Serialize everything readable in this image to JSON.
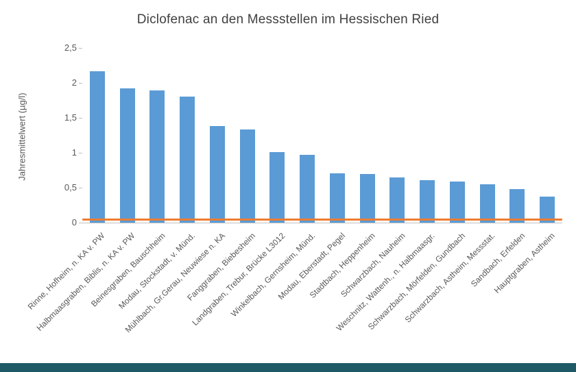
{
  "chart_data": {
    "type": "bar",
    "title": "Diclofenac an den Messstellen im Hessischen Ried",
    "ylabel": "Jahresmittelwert (µg/l)",
    "xlabel": "",
    "ylim": [
      0,
      2.5
    ],
    "grid": false,
    "legend": "none",
    "ytick_values": [
      0,
      0.5,
      1,
      1.5,
      2,
      2.5
    ],
    "ytick_labels": [
      "0",
      "0,5",
      "1",
      "1,5",
      "2",
      "2,5"
    ],
    "categories": [
      "Rinne, Hofheim, n. KA v. PW",
      "Halbmaasgraben, Biblis, n. KA v. PW",
      "Beinesgraben, Bauschheim",
      "Modau, Stockstadt, v. Münd.",
      "Mühlbach, Gr.Gerau, Neuwiese n. KA",
      "Fanggraben, Biebesheim",
      "Landgraben, Trebur, Brücke L3012",
      "Winkelbach, Gernsheim, Münd.",
      "Modau, Eberstadt, Pegel",
      "Stadtbach, Heppenheim",
      "Schwarzbach, Nauheim",
      "Weschnitz, Wattenh., n. Halbmaasgr.",
      "Schwarzbach, Mörfelden, Gundbach",
      "Schwarzbach, Astheim, Messstat.",
      "Sandbach, Erfelden",
      "Hauptgraben, Astheim"
    ],
    "values": [
      2.17,
      1.92,
      1.89,
      1.8,
      1.38,
      1.33,
      1.01,
      0.97,
      0.71,
      0.7,
      0.65,
      0.61,
      0.59,
      0.55,
      0.48,
      0.37
    ],
    "bar_color": "#5B9BD5",
    "threshold_line": {
      "value": 0.05,
      "color": "#ED7D31"
    },
    "axis_color": "#BFBFBF",
    "text_color": "#595959"
  },
  "footer_bar": {
    "color": "#1E5A66"
  }
}
